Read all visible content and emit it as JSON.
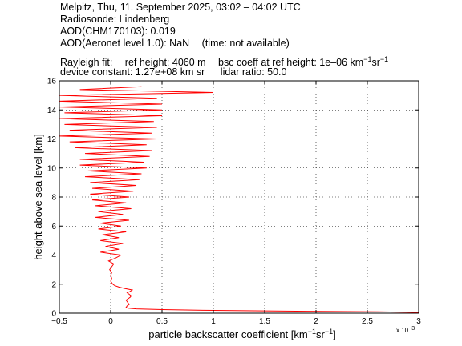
{
  "header": {
    "line1": "Melpitz, Thu, 11. September 2025, 03:02 – 04:02 UTC",
    "line2": "Radiosonde: Lindenberg",
    "line3": "AOD(CHM170103): 0.019",
    "line4_a": "AOD(Aeronet level 1.0): NaN",
    "line4_b": "(time: not available)",
    "line5_a": "Rayleigh fit:",
    "line5_b": "ref height: 4060 m",
    "line5_c": "bsc coeff at ref height: 1e–06 km",
    "line6_a": "device constant: 1.27e+08 km sr",
    "line6_b": "lidar ratio: 50.0"
  },
  "chart_data": {
    "type": "line",
    "xlabel": "particle backscatter coefficient [km",
    "xlabel_units": [
      "−1",
      "sr",
      "−1",
      "]"
    ],
    "ylabel": "height above sea level [km]",
    "x_multiplier": "x 10",
    "x_multiplier_exp": "−3",
    "xlim": [
      -0.0005,
      0.003
    ],
    "ylim": [
      0,
      16
    ],
    "xticks": [
      -0.0005,
      0,
      0.0005,
      0.001,
      0.0015,
      0.002,
      0.0025,
      0.003
    ],
    "xtick_labels": [
      "−0.5",
      "0",
      "0.5",
      "1",
      "1.5",
      "2",
      "2.5",
      "3"
    ],
    "yticks": [
      0,
      2,
      4,
      6,
      8,
      10,
      12,
      14,
      16
    ],
    "ytick_labels": [
      "0",
      "2",
      "4",
      "6",
      "8",
      "10",
      "12",
      "14",
      "16"
    ],
    "grid": true,
    "line_color": "#ff0000",
    "series": [
      {
        "height_km": [
          0.05,
          0.1,
          0.15,
          0.2,
          0.25,
          0.3,
          0.35,
          0.4,
          0.5,
          0.6,
          0.7,
          0.8,
          0.9,
          1.0,
          1.1,
          1.2,
          1.3,
          1.4,
          1.5,
          1.6,
          1.7,
          1.8,
          1.9,
          2.0,
          2.1,
          2.2,
          2.4,
          2.6,
          2.8,
          3.0,
          3.2,
          3.4,
          3.6,
          3.8,
          4.0,
          4.2,
          4.4,
          4.6,
          4.8,
          5.0,
          5.2,
          5.4,
          5.6,
          5.8,
          6.0,
          6.2,
          6.4,
          6.6,
          6.8,
          7.0,
          7.2,
          7.4,
          7.6,
          7.8,
          8.0,
          8.2,
          8.4,
          8.6,
          8.8,
          9.0,
          9.2,
          9.4,
          9.6,
          9.8,
          10.0,
          10.2,
          10.4,
          10.6,
          10.8,
          11.0,
          11.2,
          11.4,
          11.6,
          11.8,
          12.0,
          12.2,
          12.4,
          12.6,
          12.8,
          13.0,
          13.2,
          13.4,
          13.6,
          13.8,
          14.0,
          14.2,
          14.4,
          14.6,
          14.8,
          15.0,
          15.2,
          15.4,
          15.6
        ],
        "backscatter": [
          0.003,
          0.0026,
          0.0016,
          0.0009,
          0.0005,
          0.00025,
          0.00017,
          0.00015,
          0.00016,
          0.00018,
          0.00017,
          0.00016,
          0.00015,
          0.00017,
          0.00019,
          0.0002,
          0.00018,
          0.00016,
          0.00019,
          0.00021,
          0.00014,
          8e-05,
          4e-05,
          2e-05,
          1e-05,
          0.0,
          1e-05,
          0.0,
          1e-05,
          -1e-05,
          1e-05,
          3e-05,
          -2e-05,
          5e-05,
          0.0001,
          -0.0001,
          8e-05,
          -5e-05,
          0.00012,
          -0.0001,
          8e-05,
          -8e-05,
          0.00015,
          -0.00012,
          0.0001,
          -0.0001,
          0.00018,
          -0.00015,
          0.00012,
          -0.00012,
          0.0002,
          -0.00015,
          0.00015,
          -0.00018,
          0.00018,
          -0.0002,
          0.00022,
          -0.00018,
          0.00025,
          -0.0002,
          0.00028,
          -0.00025,
          0.0003,
          -0.00022,
          0.00035,
          -0.0003,
          0.00032,
          -0.0003,
          0.00038,
          -0.00025,
          0.0004,
          -0.00035,
          0.00035,
          -0.0004,
          0.00045,
          -0.0005,
          0.0004,
          -0.0004,
          0.00045,
          -0.00045,
          0.00042,
          -0.0005,
          0.0005,
          -0.00045,
          0.0005,
          -0.0005,
          0.0005,
          -0.0005,
          0.00045,
          -0.0005,
          0.001,
          -0.0003,
          0.0003
        ]
      }
    ]
  }
}
